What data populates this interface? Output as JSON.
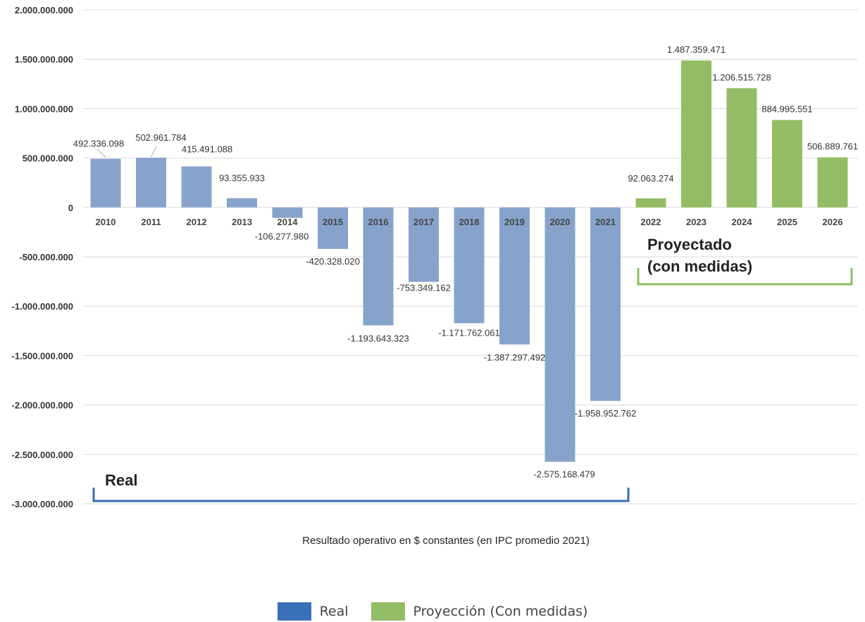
{
  "chart_data": {
    "type": "bar",
    "title": "",
    "xlabel": "Resultado operativo en $ constantes (en IPC promedio 2021)",
    "ylabel": "",
    "ylim": [
      -3000000000,
      2000000000
    ],
    "yticks": [
      {
        "value": 2000000000,
        "label": "2.000.000.000"
      },
      {
        "value": 1500000000,
        "label": "1.500.000.000"
      },
      {
        "value": 1000000000,
        "label": "1.000.000.000"
      },
      {
        "value": 500000000,
        "label": "500.000.000"
      },
      {
        "value": 0,
        "label": "0"
      },
      {
        "value": -500000000,
        "label": "-500.000.000"
      },
      {
        "value": -1000000000,
        "label": "-1.000.000.000"
      },
      {
        "value": -1500000000,
        "label": "-1.500.000.000"
      },
      {
        "value": -2000000000,
        "label": "-2.000.000.000"
      },
      {
        "value": -2500000000,
        "label": "-2.500.000.000"
      },
      {
        "value": -3000000000,
        "label": "-3.000.000.000"
      }
    ],
    "grid": true,
    "legend_position": "bottom",
    "categories": [
      "2010",
      "2011",
      "2012",
      "2013",
      "2014",
      "2015",
      "2016",
      "2017",
      "2018",
      "2019",
      "2020",
      "2021",
      "2022",
      "2023",
      "2024",
      "2025",
      "2026"
    ],
    "values": [
      492336098,
      502961784,
      415491088,
      93355933,
      -106277980,
      -420328020,
      -1193643323,
      -753349162,
      -1171762061,
      -1387297492,
      -2575168479,
      -1958952762,
      92063274,
      1487359471,
      1206515728,
      884995551,
      506889761
    ],
    "value_labels": [
      "492.336.098",
      "502.961.784",
      "415.491.088",
      "93.355.933",
      "-106.277.980",
      "-420.328.020",
      "-1.193.643.323",
      "-753.349.162",
      "-1.171.762.061",
      "-1.387.297.492",
      "-2.575.168.479",
      "-1.958.952.762",
      "92.063.274",
      "1.487.359.471",
      "1.206.515.728",
      "884.995.551",
      "506.889.761"
    ],
    "series_group": [
      "real",
      "real",
      "real",
      "real",
      "real",
      "real",
      "real",
      "real",
      "real",
      "real",
      "real",
      "real",
      "proj",
      "proj",
      "proj",
      "proj",
      "proj"
    ],
    "colors": {
      "real": "#87a3cb",
      "proj": "#93bd64",
      "real_bracket": "#3a6db5",
      "proj_bracket": "#88bf60"
    },
    "annotations": {
      "real": "Real",
      "proj_line1": "Proyectado",
      "proj_line2": "(con medidas)"
    },
    "legend": [
      {
        "label": "Real",
        "color": "#3a70b9"
      },
      {
        "label": "Proyección (Con medidas)",
        "color": "#93bd64"
      }
    ]
  }
}
